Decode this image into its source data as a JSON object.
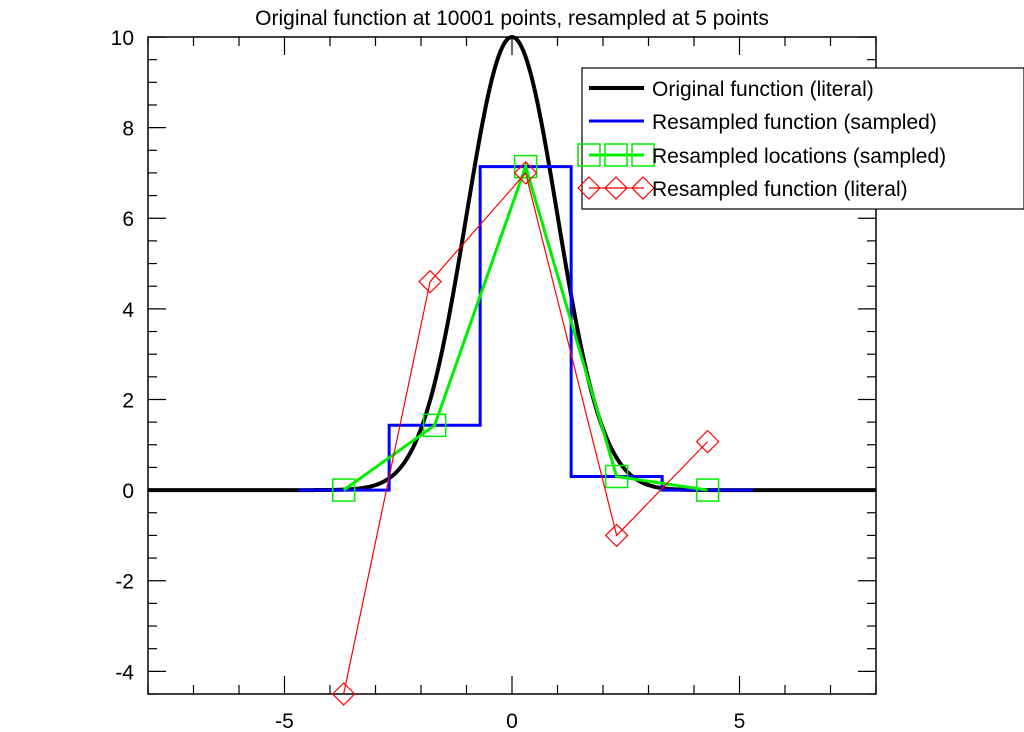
{
  "chart_data": {
    "type": "line",
    "title": "Original function at 10001 points, resampled at 5 points",
    "xlabel": "",
    "ylabel": "",
    "xlim": [
      -8,
      8
    ],
    "ylim": [
      -4.5,
      10
    ],
    "x_ticks": [
      -5,
      0,
      5
    ],
    "x_tick_labels": [
      "-5",
      "0",
      "5"
    ],
    "y_ticks": [
      -4,
      -2,
      0,
      2,
      4,
      6,
      8,
      10
    ],
    "y_tick_labels": [
      "-4",
      "-2",
      "0",
      "2",
      "4",
      "6",
      "8",
      "10"
    ],
    "grid": false,
    "legend_position": "top-right",
    "series": [
      {
        "name": "Original function (literal)",
        "kind": "curve",
        "color": "#000000",
        "function": "10*exp(-x^2/2)",
        "x_range": [
          -8,
          8
        ]
      },
      {
        "name": "Resampled function (sampled)",
        "kind": "step",
        "color": "#0000ff",
        "x_edges": [
          -4.7,
          -2.7,
          -0.7,
          1.3,
          3.3,
          5.3
        ],
        "values": [
          0.0,
          1.43,
          7.14,
          0.3,
          0.0
        ]
      },
      {
        "name": "Resampled locations (sampled)",
        "kind": "line-markers",
        "marker": "square",
        "color": "#00ee00",
        "x": [
          -3.7,
          -1.7,
          0.3,
          2.3,
          4.3
        ],
        "y": [
          0.0,
          1.43,
          7.14,
          0.3,
          0.0
        ]
      },
      {
        "name": "Resampled function (literal)",
        "kind": "line-markers",
        "marker": "diamond",
        "color": "#ff0000",
        "x": [
          -3.7,
          -1.8,
          0.3,
          2.3,
          4.3
        ],
        "y": [
          -4.5,
          4.6,
          7.0,
          -1.0,
          1.07
        ]
      }
    ]
  }
}
